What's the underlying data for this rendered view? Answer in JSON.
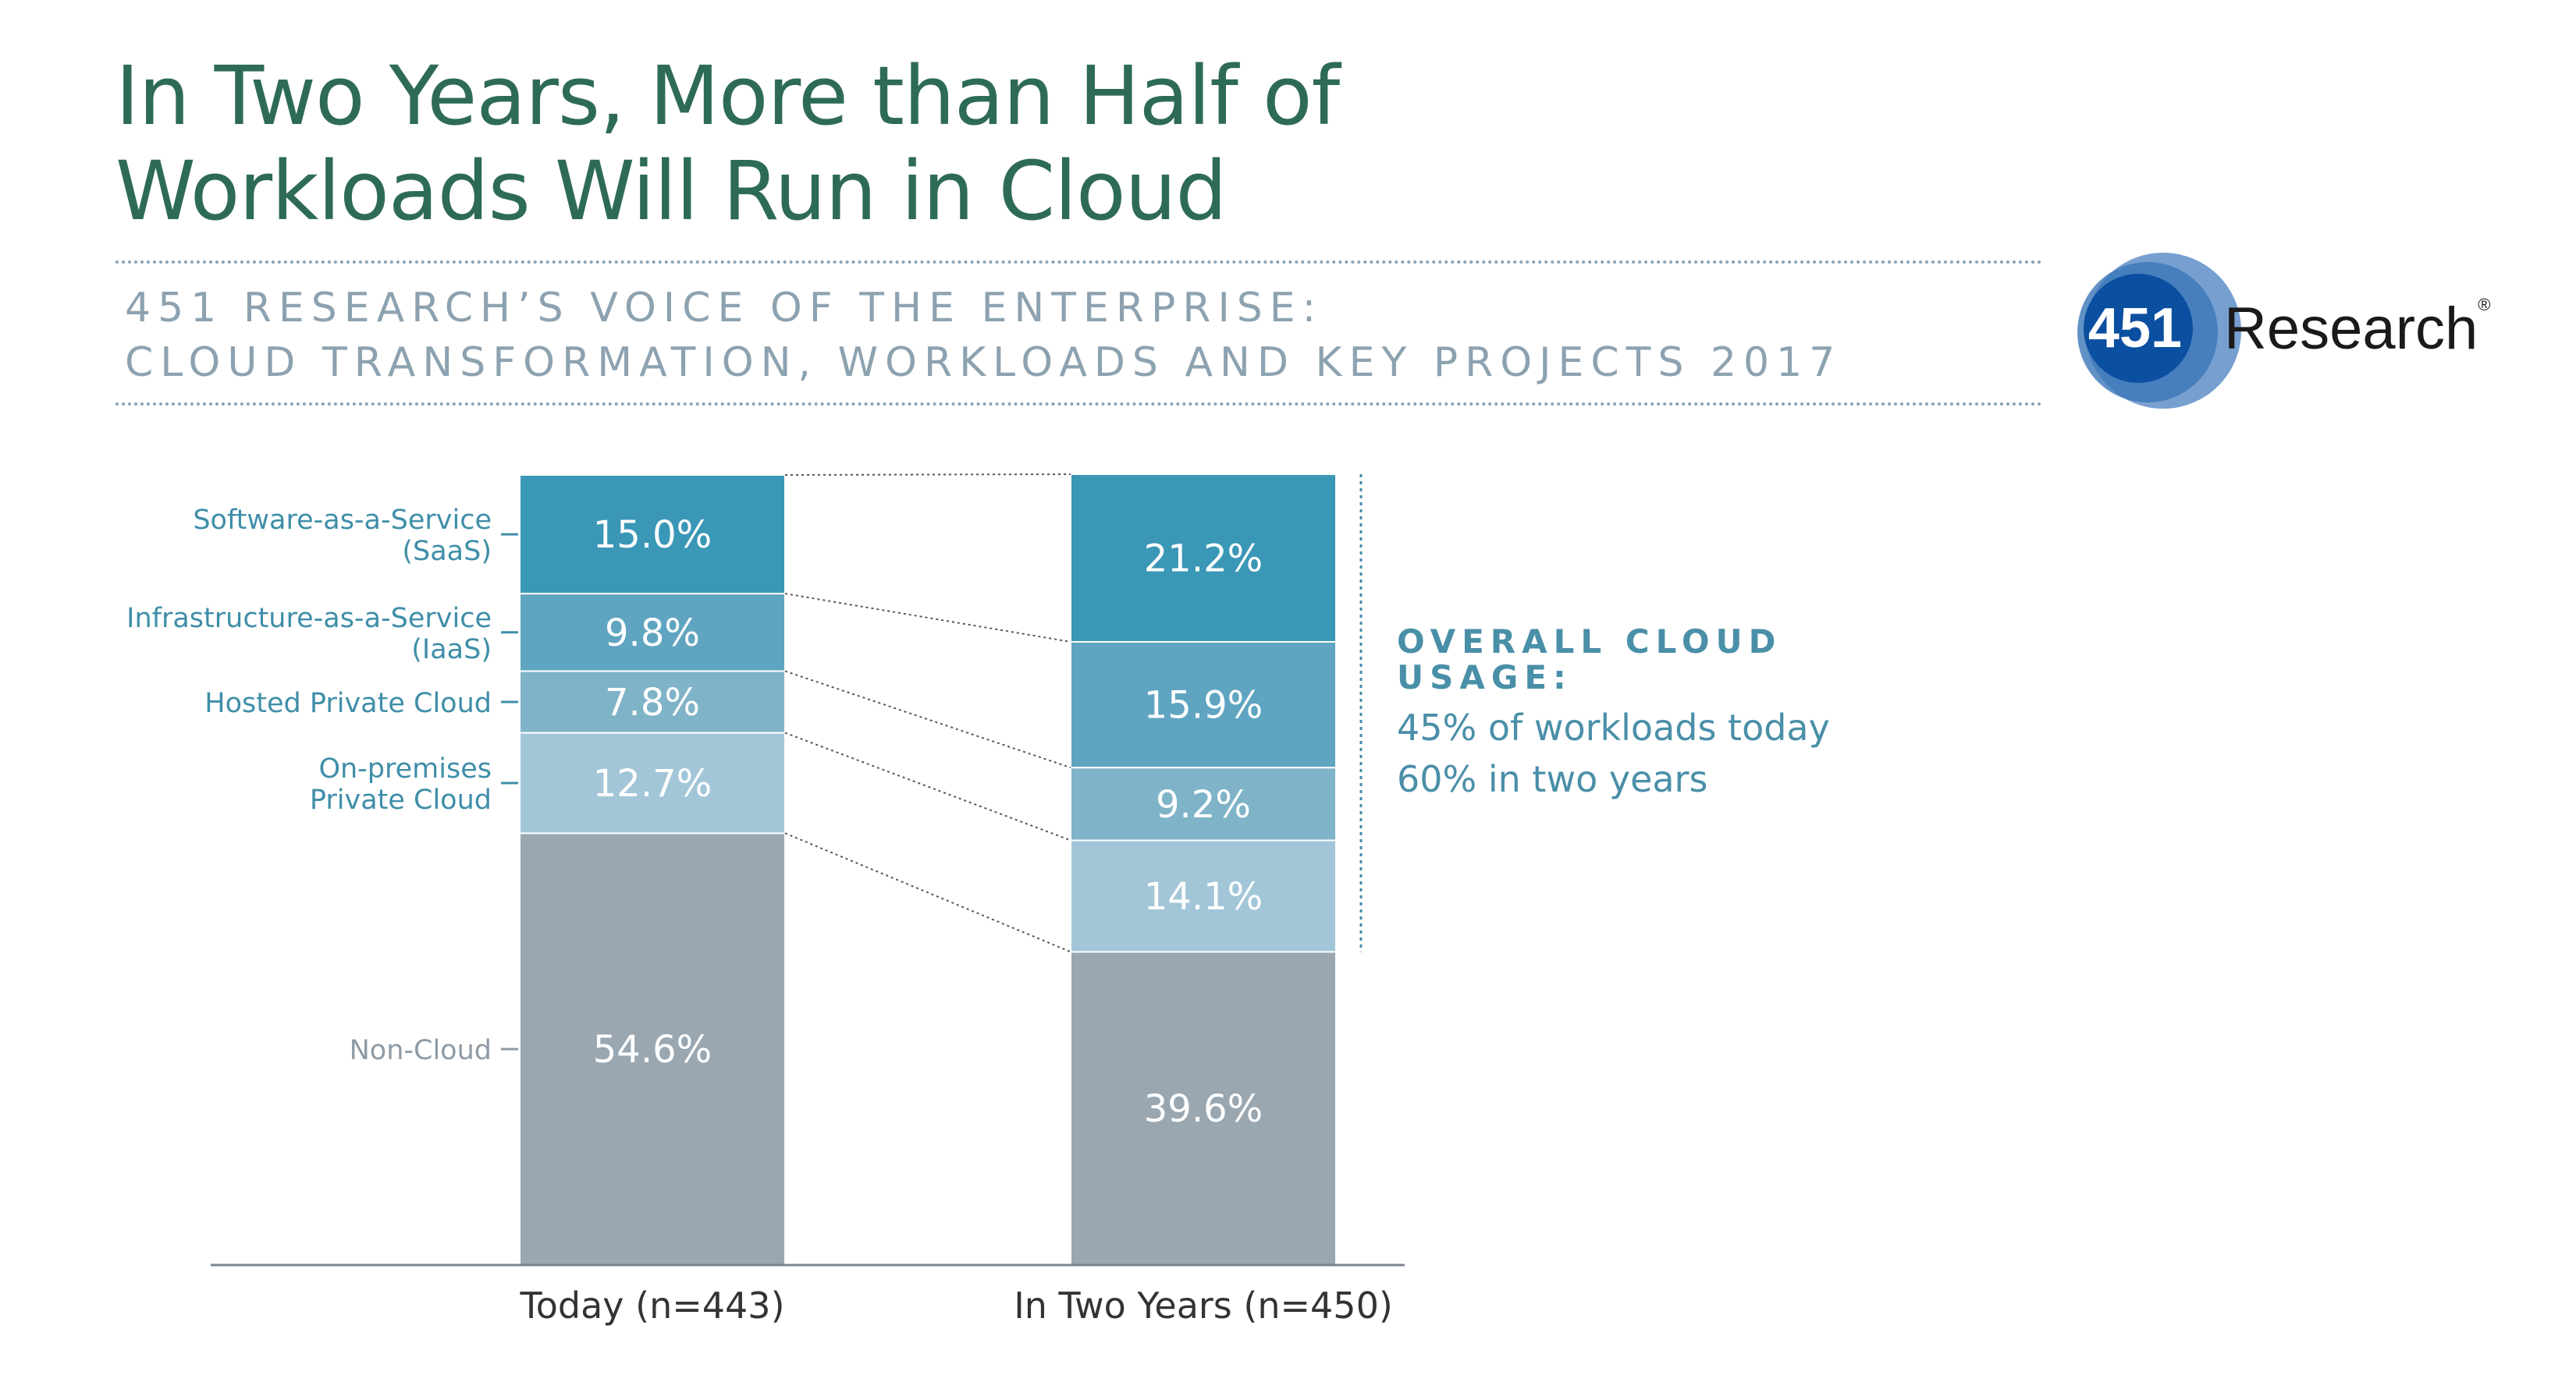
{
  "header": {
    "title_line1": "In Two Years, More than Half of",
    "title_line2": "Workloads Will Run in Cloud",
    "subtitle_line1": "451 RESEARCH’S VOICE OF THE ENTERPRISE:",
    "subtitle_line2": "CLOUD TRANSFORMATION, WORKLOADS AND KEY PROJECTS 2017"
  },
  "logo": {
    "number": "451",
    "text": "Research",
    "reg": "®"
  },
  "callout": {
    "heading": "OVERALL CLOUD USAGE:",
    "line1": "45% of workloads today",
    "line2": "60% in two years"
  },
  "colors": {
    "saas": "#3a97b6",
    "iaas": "#5fa5c1",
    "hosted": "#7fb3c7",
    "onprem": "#a2c6d8",
    "noncloud": "#9aa7b1",
    "category_label": "#3f8ea8",
    "noncloud_label": "#8e9ba6",
    "axis": "#7a8690"
  },
  "chart_data": {
    "type": "bar",
    "stacked": true,
    "categories": [
      "Today (n=443)",
      "In Two Years (n=450)"
    ],
    "series": [
      {
        "name": "Non-Cloud",
        "values": [
          54.6,
          39.6
        ],
        "labels": [
          "54.6%",
          "39.6%"
        ]
      },
      {
        "name": "On-premises Private Cloud",
        "values": [
          12.7,
          14.1
        ],
        "labels": [
          "12.7%",
          "14.1%"
        ]
      },
      {
        "name": "Hosted Private Cloud",
        "values": [
          7.8,
          9.2
        ],
        "labels": [
          "7.8%",
          "9.2%"
        ]
      },
      {
        "name": "Infrastructure-as-a-Service (IaaS)",
        "values": [
          9.8,
          15.9
        ],
        "labels": [
          "9.8%",
          "15.9%"
        ]
      },
      {
        "name": "Software-as-a-Service (SaaS)",
        "values": [
          15.0,
          21.2
        ],
        "labels": [
          "15.0%",
          "21.2%"
        ]
      }
    ],
    "legend_lines": [
      [
        "Non-Cloud"
      ],
      [
        "On-premises",
        "Private Cloud"
      ],
      [
        "Hosted Private Cloud"
      ],
      [
        "Infrastructure-as-a-Service",
        "(IaaS)"
      ],
      [
        "Software-as-a-Service",
        "(SaaS)"
      ]
    ],
    "ylim": [
      0,
      100
    ],
    "grid": false,
    "legend": "left"
  }
}
